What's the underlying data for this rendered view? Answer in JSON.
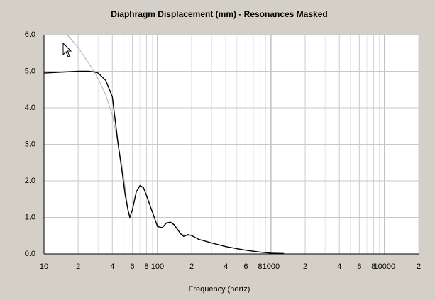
{
  "chart_data": {
    "type": "line",
    "title": "Diaphragm Displacement (mm) - Resonances Masked",
    "xlabel": "Frequency (hertz)",
    "xscale": "log",
    "grid": true,
    "xlim": [
      10,
      20000
    ],
    "ylim": [
      0,
      6
    ],
    "xticks": [
      10,
      {
        "value": 20,
        "label": "2"
      },
      {
        "value": 40,
        "label": "4"
      },
      {
        "value": 60,
        "label": "6"
      },
      {
        "value": 80,
        "label": "8"
      },
      100,
      {
        "value": 200,
        "label": "2"
      },
      {
        "value": 400,
        "label": "4"
      },
      {
        "value": 600,
        "label": "6"
      },
      {
        "value": 800,
        "label": "8"
      },
      1000,
      {
        "value": 2000,
        "label": "2"
      },
      {
        "value": 4000,
        "label": "4"
      },
      {
        "value": 6000,
        "label": "6"
      },
      {
        "value": 8000,
        "label": "8"
      },
      10000,
      {
        "value": 20000,
        "label": "2"
      }
    ],
    "yticks": [
      {
        "value": 0,
        "label": "0.0"
      },
      {
        "value": 1,
        "label": "1.0"
      },
      {
        "value": 2,
        "label": "2.0"
      },
      {
        "value": 3,
        "label": "3.0"
      },
      {
        "value": 4,
        "label": "4.0"
      },
      {
        "value": 5,
        "label": "5.0"
      },
      {
        "value": 6,
        "label": "6.0"
      }
    ],
    "series": [
      {
        "color": "#b0b0b0",
        "x": [
          16,
          20,
          25,
          30,
          35,
          40,
          45,
          50,
          55,
          57,
          60,
          65,
          70,
          75,
          80,
          90,
          100,
          110,
          120,
          130,
          140,
          160,
          180,
          200,
          230,
          300,
          400,
          600,
          800,
          1000,
          1300
        ],
        "values": [
          6.0,
          5.65,
          5.2,
          4.8,
          4.35,
          3.8,
          3.0,
          2.2,
          1.2,
          1.0,
          1.2,
          1.7,
          1.86,
          1.8,
          1.6,
          1.15,
          0.75,
          0.72,
          0.84,
          0.86,
          0.79,
          0.55,
          0.5,
          0.51,
          0.4,
          0.3,
          0.2,
          0.1,
          0.05,
          0.02,
          0.01
        ]
      },
      {
        "color": "#000000",
        "x": [
          10,
          20,
          25,
          28,
          30,
          35,
          40,
          45,
          49,
          52,
          55,
          57,
          60,
          65,
          70,
          75,
          80,
          90,
          100,
          110,
          120,
          130,
          140,
          160,
          170,
          186,
          200,
          230,
          300,
          400,
          600,
          800,
          1000,
          1300
        ],
        "values": [
          4.95,
          5.0,
          5.0,
          4.98,
          4.95,
          4.75,
          4.3,
          3.0,
          2.2,
          1.6,
          1.2,
          1.0,
          1.2,
          1.7,
          1.87,
          1.82,
          1.6,
          1.15,
          0.75,
          0.72,
          0.85,
          0.87,
          0.8,
          0.55,
          0.48,
          0.53,
          0.5,
          0.4,
          0.3,
          0.2,
          0.1,
          0.05,
          0.02,
          0.01
        ]
      }
    ]
  }
}
